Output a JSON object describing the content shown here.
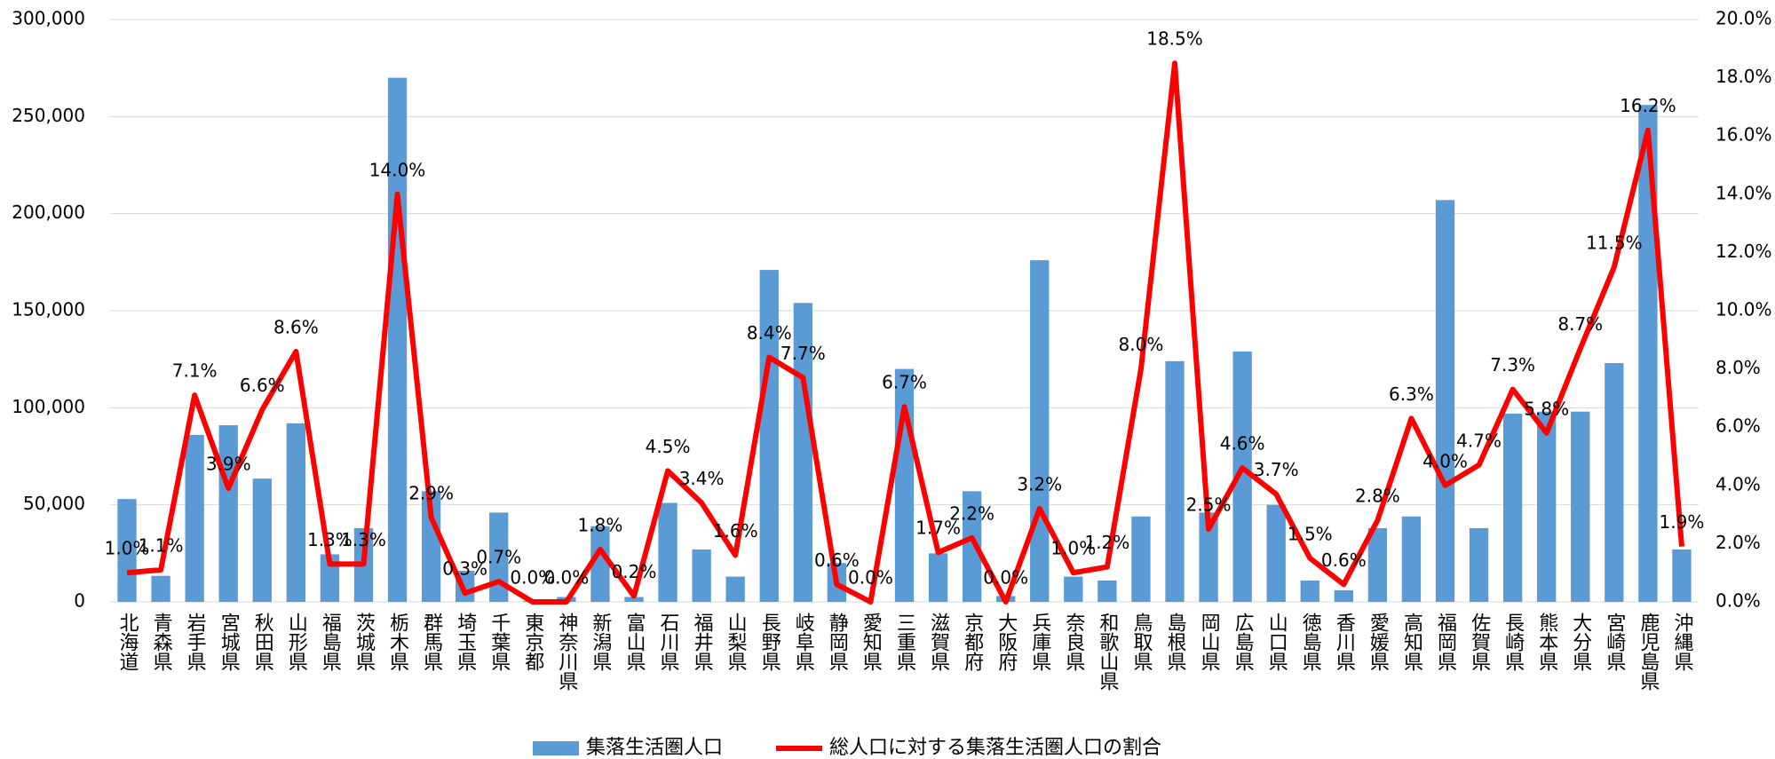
{
  "chart_data": {
    "type": "bar-line",
    "categories": [
      "北海道",
      "青森県",
      "岩手県",
      "宮城県",
      "秋田県",
      "山形県",
      "福島県",
      "茨城県",
      "栃木県",
      "群馬県",
      "埼玉県",
      "千葉県",
      "東京都",
      "神奈川県",
      "新潟県",
      "富山県",
      "石川県",
      "福井県",
      "山梨県",
      "長野県",
      "岐阜県",
      "静岡県",
      "愛知県",
      "三重県",
      "滋賀県",
      "京都府",
      "大阪府",
      "兵庫県",
      "奈良県",
      "和歌山県",
      "鳥取県",
      "島根県",
      "岡山県",
      "広島県",
      "山口県",
      "徳島県",
      "香川県",
      "愛媛県",
      "高知県",
      "福岡県",
      "佐賀県",
      "長崎県",
      "熊本県",
      "大分県",
      "宮崎県",
      "鹿児島県",
      "沖縄県"
    ],
    "series": [
      {
        "name": "集落生活圏人口",
        "color": "#5b9bd5",
        "type": "bar",
        "values": [
          53000,
          13400,
          86000,
          91000,
          63500,
          92000,
          24500,
          38000,
          270000,
          57000,
          16000,
          46000,
          500,
          2500,
          39000,
          2500,
          51000,
          27000,
          13000,
          171000,
          154000,
          20000,
          0,
          120000,
          25000,
          57000,
          3000,
          176000,
          13000,
          11000,
          44000,
          124000,
          46000,
          129000,
          50000,
          11000,
          6000,
          38000,
          44000,
          207000,
          38000,
          97000,
          98000,
          98000,
          123000,
          256000,
          27000
        ]
      },
      {
        "name": "総人口に対する集落生活圏人口の割合",
        "color": "#ff0000",
        "type": "line",
        "axis": "y2",
        "values": [
          1.0,
          1.1,
          7.1,
          3.9,
          6.6,
          8.6,
          1.3,
          1.3,
          14.0,
          2.9,
          0.3,
          0.7,
          0.0,
          0.0,
          1.8,
          0.2,
          4.5,
          3.4,
          1.6,
          8.4,
          7.7,
          0.6,
          0.0,
          6.7,
          1.7,
          2.2,
          0.0,
          3.2,
          1.0,
          1.2,
          8.0,
          18.5,
          2.5,
          4.6,
          3.7,
          1.5,
          0.6,
          2.8,
          6.3,
          4.0,
          4.7,
          7.3,
          5.8,
          8.7,
          11.5,
          16.2,
          1.9
        ],
        "value_labels": [
          "1.0%",
          "1.1%",
          "7.1%",
          "3.9%",
          "6.6%",
          "8.6%",
          "1.3%",
          "1.3%",
          "14.0%",
          "2.9%",
          "0.3%",
          "0.7%",
          "0.0%",
          "0.0%",
          "1.8%",
          "0.2%",
          "4.5%",
          "3.4%",
          "1.6%",
          "8.4%",
          "7.7%",
          "0.6%",
          "0.0%",
          "6.7%",
          "1.7%",
          "2.2%",
          "0.0%",
          "3.2%",
          "1.0%",
          "1.2%",
          "8.0%",
          "18.5%",
          "2.5%",
          "4.6%",
          "3.7%",
          "1.5%",
          "0.6%",
          "2.8%",
          "6.3%",
          "4.0%",
          "4.7%",
          "7.3%",
          "5.8%",
          "8.7%",
          "11.5%",
          "16.2%",
          "1.9%"
        ]
      }
    ],
    "ylim": [
      0,
      300000
    ],
    "yticks": [
      0,
      {
        "value": 50000,
        "label": "50,000"
      },
      {
        "value": 100000,
        "label": "100,000"
      },
      {
        "value": 150000,
        "label": "150,000"
      },
      {
        "value": 200000,
        "label": "200,000"
      },
      {
        "value": 250000,
        "label": "250,000"
      },
      {
        "value": 300000,
        "label": "300,000"
      }
    ],
    "y2lim": [
      0,
      20
    ],
    "y2ticks": [
      {
        "value": 0,
        "label": "0.0%"
      },
      {
        "value": 2,
        "label": "2.0%"
      },
      {
        "value": 4,
        "label": "4.0%"
      },
      {
        "value": 6,
        "label": "6.0%"
      },
      {
        "value": 8,
        "label": "8.0%"
      },
      {
        "value": 10,
        "label": "10.0%"
      },
      {
        "value": 12,
        "label": "12.0%"
      },
      {
        "value": 14,
        "label": "14.0%"
      },
      {
        "value": 16,
        "label": "16.0%"
      },
      {
        "value": 18,
        "label": "18.0%"
      },
      {
        "value": 20,
        "label": "20.0%"
      }
    ],
    "grid": true,
    "legend": "bottom"
  }
}
